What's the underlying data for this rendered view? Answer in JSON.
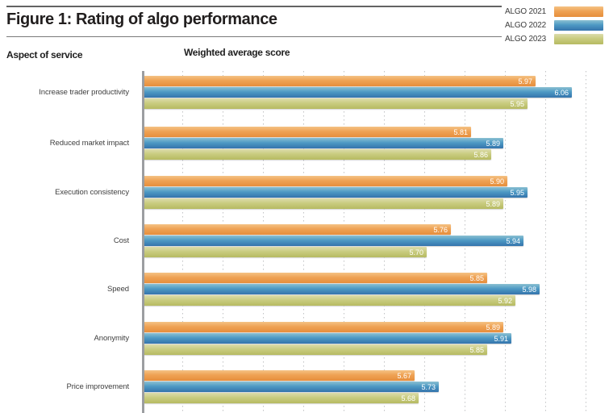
{
  "header": {
    "title": "Figure 1: Rating of algo performance",
    "left_column_header": "Aspect of service",
    "right_column_header": "Weighted average score"
  },
  "chart_data": {
    "type": "bar",
    "orientation": "horizontal",
    "title": "Figure 1: Rating of algo performance",
    "categories": [
      "Increase trader productivity",
      "Reduced market impact",
      "Execution consistency",
      "Cost",
      "Speed",
      "Anonymity",
      "Price improvement"
    ],
    "series": [
      {
        "name": "ALGO 2021",
        "color_top": "#F5C385",
        "color_mid": "#EFA254",
        "color_bottom": "#E68E3C",
        "values": [
          5.97,
          5.81,
          5.9,
          5.76,
          5.85,
          5.89,
          5.67
        ]
      },
      {
        "name": "ALGO 2022",
        "color_top": "#8BC0D2",
        "color_mid": "#4E9AC4",
        "color_bottom": "#3474AC",
        "values": [
          6.06,
          5.89,
          5.95,
          5.94,
          5.98,
          5.91,
          5.73
        ]
      },
      {
        "name": "ALGO 2023",
        "color_top": "#DCDCAC",
        "color_mid": "#C9CC80",
        "color_bottom": "#B6BA62",
        "values": [
          5.95,
          5.86,
          5.89,
          5.7,
          5.92,
          5.85,
          5.68
        ]
      }
    ],
    "xlabel": "Weighted average score",
    "ylabel": "Aspect of service",
    "xlim": [
      5.0,
      6.17
    ],
    "gridline_step": 0.1,
    "x_tick_labels_visible": false,
    "grid": "vertical dotted lines",
    "legend_position": "top-right",
    "value_labels": "inside bar end, white, two decimals",
    "value_label_format": "0.00"
  },
  "colors": {
    "background": "#ffffff",
    "title_text": "#211e1e",
    "category_label_text": "#3f3f3f",
    "legend_label_text": "#3c3c3c",
    "value_label_text": "#ffffff",
    "axis_line": "#9c9ea1",
    "gridline": "#c2c3c5",
    "rule": "#636363"
  }
}
